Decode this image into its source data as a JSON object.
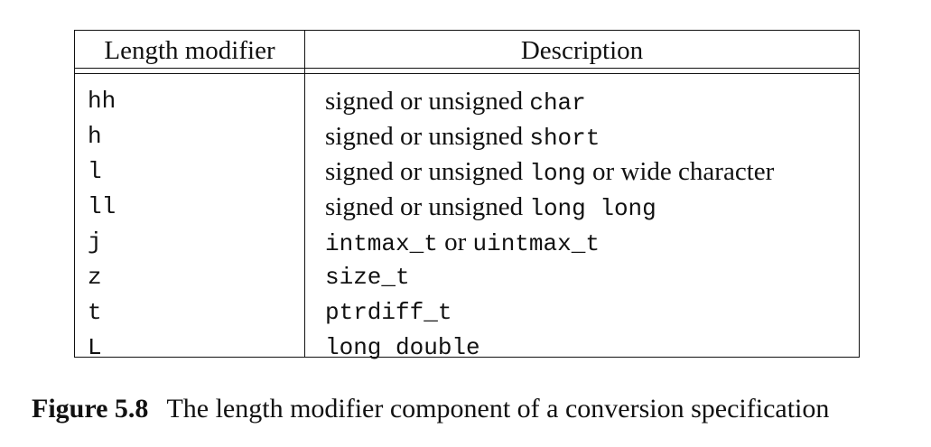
{
  "table": {
    "headers": {
      "modifier": "Length modifier",
      "description": "Description"
    },
    "rows": [
      {
        "modifier": "hh",
        "description": [
          {
            "text": "signed or unsigned ",
            "mono": false
          },
          {
            "text": "char",
            "mono": true
          }
        ]
      },
      {
        "modifier": "h",
        "description": [
          {
            "text": "signed or unsigned ",
            "mono": false
          },
          {
            "text": "short",
            "mono": true
          }
        ]
      },
      {
        "modifier": "l",
        "description": [
          {
            "text": "signed or unsigned ",
            "mono": false
          },
          {
            "text": "long",
            "mono": true
          },
          {
            "text": " or wide character",
            "mono": false
          }
        ]
      },
      {
        "modifier": "ll",
        "description": [
          {
            "text": "signed or unsigned ",
            "mono": false
          },
          {
            "text": "long long",
            "mono": true
          }
        ]
      },
      {
        "modifier": "j",
        "description": [
          {
            "text": "intmax_t",
            "mono": true
          },
          {
            "text": " or ",
            "mono": false
          },
          {
            "text": "uintmax_t",
            "mono": true
          }
        ]
      },
      {
        "modifier": "z",
        "description": [
          {
            "text": "size_t",
            "mono": true
          }
        ]
      },
      {
        "modifier": "t",
        "description": [
          {
            "text": "ptrdiff_t",
            "mono": true
          }
        ]
      },
      {
        "modifier": "L",
        "description": [
          {
            "text": "long double",
            "mono": true
          }
        ]
      }
    ]
  },
  "caption": {
    "label": "Figure 5.8",
    "text": "The length modifier component of a conversion specification"
  }
}
